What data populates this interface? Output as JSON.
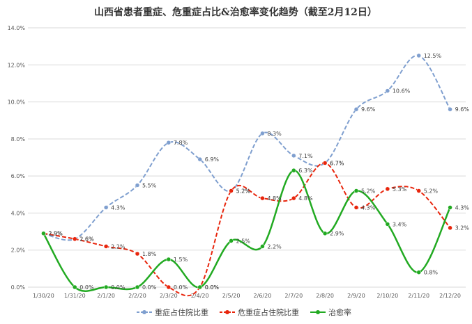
{
  "chart_data": {
    "type": "line",
    "title": "山西省患者重症、危重症占比&治愈率变化趋势（截至2月12日）",
    "categories": [
      "1/30/20",
      "1/31/20",
      "2/1/20",
      "2/2/20",
      "2/3/20",
      "2/4/20",
      "2/5/20",
      "2/6/20",
      "2/7/20",
      "2/8/20",
      "2/9/20",
      "2/10/20",
      "2/11/20",
      "2/12/20"
    ],
    "y_ticks": [
      "0.0%",
      "2.0%",
      "4.0%",
      "6.0%",
      "8.0%",
      "10.0%",
      "12.0%",
      "14.0%"
    ],
    "ylim": [
      0,
      14
    ],
    "grid": true,
    "legend_position": "bottom",
    "series": [
      {
        "name": "重症占住院比重",
        "color": "#7f9fcf",
        "dash": "dashed",
        "values": [
          2.9,
          2.6,
          4.3,
          5.5,
          7.8,
          6.9,
          5.2,
          8.3,
          7.1,
          6.7,
          9.6,
          10.6,
          12.5,
          9.6
        ],
        "labels": [
          "2.9%",
          "2.6%",
          "4.3%",
          "5.5%",
          "7.8%",
          "6.9%",
          "5.2%",
          "8.3%",
          "7.1%",
          "6.7%",
          "9.6%",
          "10.6%",
          "12.5%",
          "9.6%"
        ]
      },
      {
        "name": "危重症占住院比重",
        "color": "#e8250c",
        "dash": "dashed",
        "values": [
          2.9,
          2.6,
          2.2,
          1.8,
          0.0,
          0.0,
          5.2,
          4.8,
          4.8,
          6.7,
          4.3,
          5.3,
          5.2,
          3.2
        ],
        "labels": [
          "2.9%",
          "2.6%",
          "2.2%",
          "1.8%",
          "0.0%",
          "0.0%",
          "5.2%",
          "4.8%",
          "4.8%",
          "6.7%",
          "4.3%",
          "5.3%",
          "5.2%",
          "3.2%"
        ]
      },
      {
        "name": "治愈率",
        "color": "#22aa22",
        "dash": "solid",
        "values": [
          2.9,
          0.0,
          0.0,
          0.0,
          1.5,
          0.0,
          2.5,
          2.2,
          6.3,
          2.9,
          5.2,
          3.4,
          0.8,
          4.3
        ],
        "labels": [
          "2.9%",
          "0.0%",
          "0.0%",
          "0.0%",
          "1.5%",
          "0.0%",
          "2.5%",
          "2.2%",
          "6.3%",
          "2.9%",
          "5.2%",
          "3.4%",
          "0.8%",
          "4.3%"
        ]
      }
    ]
  }
}
